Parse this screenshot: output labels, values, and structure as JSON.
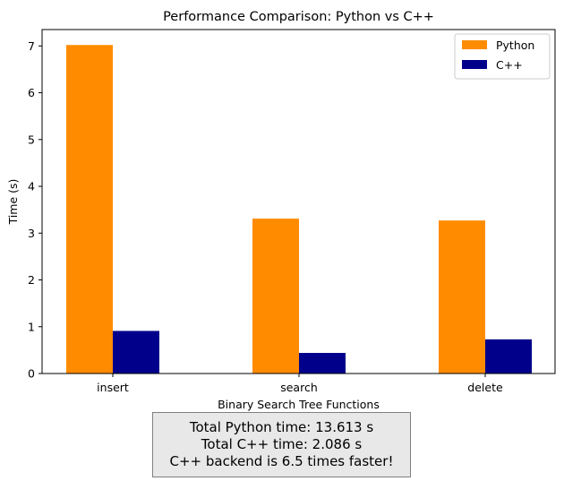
{
  "chart_data": {
    "type": "bar",
    "title": "Performance Comparison: Python vs C++",
    "xlabel": "Binary Search Tree Functions",
    "ylabel": "Time (s)",
    "categories": [
      "insert",
      "search",
      "delete"
    ],
    "series": [
      {
        "name": "Python",
        "values": [
          7.02,
          3.31,
          3.27
        ],
        "color": "#ff8c00"
      },
      {
        "name": "C++",
        "values": [
          0.91,
          0.44,
          0.73
        ],
        "color": "#00008b"
      }
    ],
    "ylim": [
      0,
      7.35
    ],
    "yticks": [
      "0",
      "1",
      "2",
      "3",
      "4",
      "5",
      "6",
      "7"
    ],
    "legend_position": "top-right",
    "grid": false
  },
  "summary": {
    "python_total": "Total Python time: 13.613 s",
    "cpp_total": "Total C++ time: 2.086 s",
    "speedup": "C++ backend is 6.5 times faster!"
  }
}
